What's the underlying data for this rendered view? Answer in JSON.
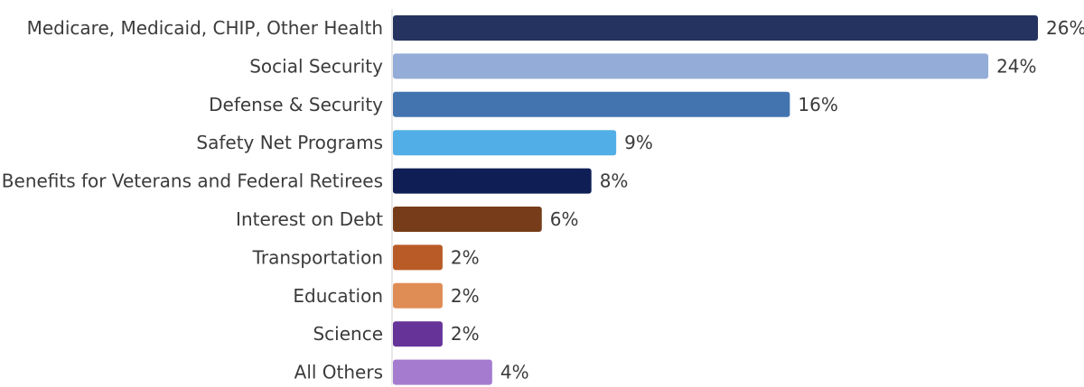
{
  "chart_data": {
    "type": "bar",
    "orientation": "horizontal",
    "title": "",
    "xlabel": "",
    "ylabel": "",
    "xlim": [
      0,
      26
    ],
    "grid": false,
    "value_suffix": "%",
    "categories": [
      "Medicare, Medicaid, CHIP, Other Health",
      "Social Security",
      "Defense & Security",
      "Safety Net Programs",
      "Benefits for Veterans and Federal Retirees",
      "Interest on Debt",
      "Transportation",
      "Education",
      "Science",
      "All Others"
    ],
    "values": [
      26,
      24,
      16,
      9,
      8,
      6,
      2,
      2,
      2,
      4
    ],
    "colors": [
      "#24335f",
      "#94acd8",
      "#4374b0",
      "#52aee6",
      "#0f1f56",
      "#773c1a",
      "#b95b27",
      "#e08c55",
      "#663399",
      "#a57bd0"
    ]
  }
}
